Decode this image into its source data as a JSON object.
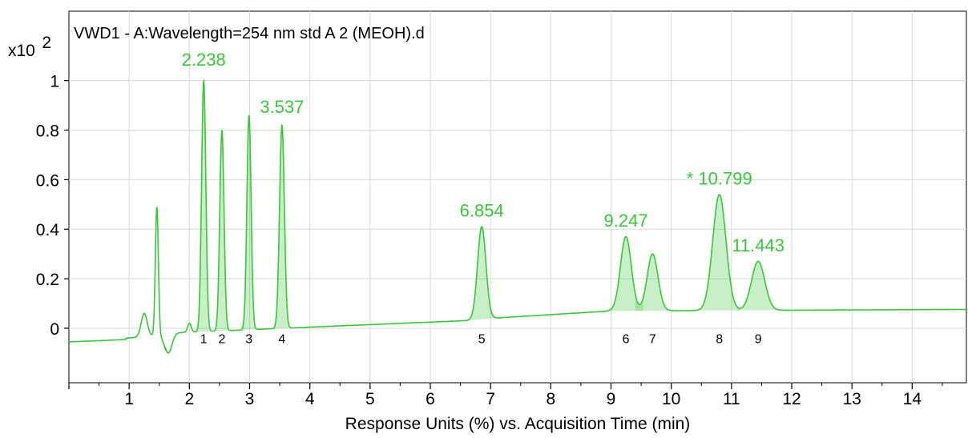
{
  "chart_data": {
    "type": "line",
    "title": "VWD1 - A:Wavelength=254 nm std A 2 (MEOH).d",
    "xlabel": "Response Units (%) vs. Acquisition Time (min)",
    "ylabel": "",
    "y_multiplier": {
      "base": "x10",
      "exp": "2"
    },
    "xlim": [
      0,
      14.9
    ],
    "ylim": [
      -0.22,
      1.28
    ],
    "x_ticks": [
      1,
      2,
      3,
      4,
      5,
      6,
      7,
      8,
      9,
      10,
      11,
      12,
      13,
      14
    ],
    "y_ticks": [
      {
        "value": 0,
        "label": "0"
      },
      {
        "value": 0.2,
        "label": "0.2"
      },
      {
        "value": 0.4,
        "label": "0.4"
      },
      {
        "value": 0.6,
        "label": "0.6"
      },
      {
        "value": 0.8,
        "label": "0.8"
      },
      {
        "value": 1,
        "label": "1"
      }
    ],
    "grid": true,
    "line_color": "#3cc43c",
    "fill_color": "#3cc43c",
    "peak_labels": [
      {
        "text": "2.238",
        "x": 2.238,
        "y": 1.06
      },
      {
        "text": "3.537",
        "x": 3.537,
        "y": 0.87
      },
      {
        "text": "6.854",
        "x": 6.854,
        "y": 0.45
      },
      {
        "text": "9.247",
        "x": 9.247,
        "y": 0.41
      },
      {
        "text": "* 10.799",
        "x": 10.799,
        "y": 0.58
      },
      {
        "text": "11.443",
        "x": 11.443,
        "y": 0.31
      }
    ],
    "peaks": [
      {
        "num": "1",
        "rt": 2.238,
        "height": 1.0,
        "width": 0.035,
        "shaded": true
      },
      {
        "num": "2",
        "rt": 2.54,
        "height": 0.8,
        "width": 0.035,
        "shaded": true
      },
      {
        "num": "3",
        "rt": 2.99,
        "height": 0.86,
        "width": 0.035,
        "shaded": true
      },
      {
        "num": "4",
        "rt": 3.537,
        "height": 0.82,
        "width": 0.04,
        "shaded": true
      },
      {
        "num": "5",
        "rt": 6.854,
        "height": 0.41,
        "width": 0.07,
        "shaded": true
      },
      {
        "num": "6",
        "rt": 9.247,
        "height": 0.37,
        "width": 0.09,
        "shaded": true
      },
      {
        "num": "7",
        "rt": 9.69,
        "height": 0.3,
        "width": 0.09,
        "shaded": true
      },
      {
        "num": "8",
        "rt": 10.799,
        "height": 0.54,
        "width": 0.11,
        "shaded": true
      },
      {
        "num": "9",
        "rt": 11.443,
        "height": 0.27,
        "width": 0.11,
        "shaded": true
      }
    ],
    "extra_features": [
      {
        "x": 1.25,
        "y": 0.06,
        "width": 0.05
      },
      {
        "x": 1.46,
        "y": 0.49,
        "width": 0.025
      },
      {
        "x": 1.65,
        "y": -0.1,
        "width": 0.06
      },
      {
        "x": 2.0,
        "y": 0.02,
        "width": 0.03
      }
    ]
  }
}
